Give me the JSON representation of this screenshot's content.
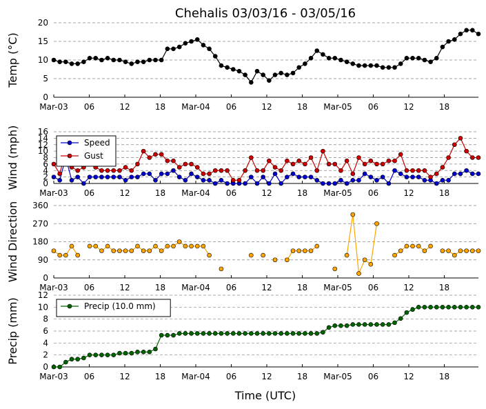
{
  "title": "Chehalis 03/03/16 - 03/05/16",
  "xlabel": "Time (UTC)",
  "x_tick_labels": [
    "Mar-03",
    "06",
    "12",
    "18",
    "Mar-04",
    "06",
    "12",
    "18",
    "Mar-05",
    "06",
    "12",
    "18"
  ],
  "chart_data": [
    {
      "type": "line",
      "panel": "temperature",
      "ylabel": "Temp (°C)",
      "ylim": [
        0,
        20
      ],
      "y_ticks": [
        0,
        5,
        10,
        15,
        20
      ],
      "grid": "horizontal dashed",
      "series": [
        {
          "color": "#000000",
          "values": [
            10,
            9.5,
            9.5,
            9,
            9,
            9.5,
            10.5,
            10.5,
            10,
            10.5,
            10,
            10,
            9.5,
            9,
            9.5,
            9.5,
            10,
            10,
            10,
            13,
            13,
            13.5,
            14.5,
            15,
            15.5,
            14,
            13,
            11,
            8.5,
            8,
            7.5,
            7,
            6,
            4,
            7,
            6,
            4.5,
            6,
            6.5,
            6,
            6.5,
            8,
            9,
            10.5,
            12.5,
            11.5,
            10.5,
            10.5,
            10,
            9.5,
            9,
            8.5,
            8.5,
            8.5,
            8.5,
            8,
            8,
            8,
            9,
            10.5,
            10.5,
            10.5,
            10,
            9.5,
            10.5,
            13.5,
            15,
            15.5,
            17,
            18,
            18,
            17
          ]
        }
      ]
    },
    {
      "type": "line",
      "panel": "wind",
      "ylabel": "Wind (mph)",
      "ylim": [
        0,
        16
      ],
      "y_ticks": [
        0,
        2,
        4,
        6,
        8,
        10,
        12,
        14,
        16
      ],
      "grid": "horizontal dashed",
      "legend_position": "top-left",
      "series": [
        {
          "name": "Speed",
          "color": "#0000cc",
          "values": [
            2,
            1,
            8,
            1,
            2,
            0,
            2,
            2,
            2,
            2,
            2,
            2,
            1,
            2,
            2,
            3,
            3,
            1,
            3,
            3,
            4,
            2,
            1,
            3,
            2,
            1,
            1,
            0,
            1,
            0,
            0,
            0,
            0,
            2,
            0,
            2,
            0,
            3,
            0,
            2,
            3,
            2,
            2,
            2,
            1,
            0,
            0,
            0,
            1,
            0,
            1,
            1,
            3,
            2,
            1,
            2,
            0,
            4,
            3,
            2,
            2,
            2,
            1,
            1,
            0,
            1,
            1,
            3,
            3,
            4,
            3,
            3
          ]
        },
        {
          "name": "Gust",
          "color": "#cc0000",
          "values": [
            6,
            3,
            10,
            5,
            4,
            5,
            6,
            5,
            4,
            4,
            4,
            4,
            5,
            4,
            6,
            10,
            8,
            9,
            9,
            7,
            7,
            5,
            6,
            6,
            5,
            3,
            3,
            4,
            4,
            4,
            1,
            1,
            4,
            8,
            4,
            4,
            7,
            5,
            4,
            7,
            6,
            7,
            6,
            8,
            4,
            10,
            6,
            6,
            4,
            7,
            3,
            8,
            6,
            7,
            6,
            6,
            7,
            7,
            9,
            4,
            4,
            4,
            4,
            2,
            3,
            5,
            8,
            12,
            14,
            10,
            8,
            8
          ]
        }
      ]
    },
    {
      "type": "scatter",
      "panel": "wind_direction",
      "ylabel": "Wind Direction",
      "ylim": [
        0,
        360
      ],
      "y_ticks": [
        0,
        90,
        180,
        270,
        360
      ],
      "grid": "horizontal dashed",
      "series": [
        {
          "color": "#ffa500",
          "values": [
            135,
            113,
            113,
            158,
            113,
            null,
            158,
            158,
            135,
            158,
            135,
            135,
            135,
            135,
            158,
            135,
            135,
            158,
            135,
            158,
            158,
            180,
            158,
            158,
            158,
            158,
            113,
            null,
            45,
            null,
            null,
            null,
            null,
            113,
            null,
            113,
            null,
            90,
            null,
            90,
            135,
            135,
            135,
            135,
            158,
            null,
            null,
            45,
            null,
            113,
            315,
            22,
            90,
            68,
            270,
            null,
            null,
            113,
            135,
            158,
            158,
            158,
            135,
            158,
            null,
            135,
            135,
            113,
            135,
            135,
            135,
            135
          ]
        }
      ]
    },
    {
      "type": "line",
      "panel": "precip",
      "ylabel": "Precip (mm)",
      "ylim": [
        0,
        12
      ],
      "y_ticks": [
        0,
        2,
        4,
        6,
        8,
        10,
        12
      ],
      "grid": "horizontal dashed",
      "legend_position": "top-left",
      "series": [
        {
          "name": "Precip (10.0 mm)",
          "color": "#006400",
          "values": [
            0,
            0,
            0.8,
            1.3,
            1.3,
            1.5,
            2,
            2,
            2,
            2,
            2,
            2.3,
            2.3,
            2.3,
            2.5,
            2.5,
            2.5,
            3,
            5.3,
            5.3,
            5.3,
            5.6,
            5.6,
            5.6,
            5.6,
            5.6,
            5.6,
            5.6,
            5.6,
            5.6,
            5.6,
            5.6,
            5.6,
            5.6,
            5.6,
            5.6,
            5.6,
            5.6,
            5.6,
            5.6,
            5.6,
            5.6,
            5.6,
            5.6,
            5.6,
            5.8,
            6.6,
            6.9,
            6.9,
            6.9,
            7.1,
            7.1,
            7.1,
            7.1,
            7.1,
            7.1,
            7.1,
            7.4,
            8.1,
            9.1,
            9.6,
            10,
            10,
            10,
            10,
            10,
            10,
            10,
            10,
            10,
            10,
            10
          ]
        }
      ]
    }
  ]
}
